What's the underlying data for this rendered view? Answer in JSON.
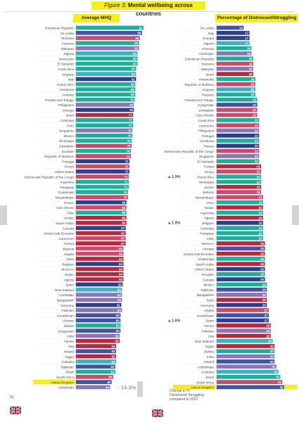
{
  "header": {
    "figure_label": "Figure 3:",
    "title": "Mental wellbeing across countries"
  },
  "chart_data": [
    {
      "type": "bar",
      "title": "Average MHQ",
      "orientation": "horizontal",
      "highlight": "United Kingdom",
      "bottom_annotation": "14.3",
      "categories": [
        "Dominican Republic",
        "Sri Lanka",
        "Tanzania",
        "Panama",
        "Malaysia",
        "Nigeria",
        "Venezuela",
        "El Salvador",
        "Costa Rica",
        "Uruguay",
        "Italy",
        "Puerto Rico",
        "Honduras",
        "Armenia",
        "Trinidad and Tobago",
        "Philippines",
        "Georgia",
        "Israel",
        "Colombia",
        "Peru",
        "Singapore",
        "Mexico",
        "Nicaragua",
        "Zimbabwe",
        "Ecuador",
        "Republic of Moldova",
        "Portugal",
        "Kenya",
        "United States",
        "Democratic Republic of the Congo",
        "Argentina",
        "Paraguay",
        "Guatemala",
        "Mozambique",
        "France",
        "Cote d'Ivoire",
        "Chile",
        "Jordan",
        "Saudi Arabia",
        "Canada",
        "United Arab Emirates",
        "Cameroon",
        "Tunisia",
        "Belarus",
        "Angola",
        "Syria",
        "Belgium",
        "Morocco",
        "Sudan",
        "Algeria",
        "Spain",
        "New Zealand",
        "Azerbaijan",
        "Bangladesh",
        "Germany",
        "Pakistan",
        "Kazakhstan",
        "Ukraine",
        "Bolivia",
        "Kyrgyzstan",
        "India",
        "Yemen",
        "Iraq",
        "Ireland",
        "Egypt",
        "Australia",
        "Tajikistan",
        "Brazil",
        "South Africa",
        "United Kingdom",
        "Uzbekistan"
      ],
      "values": [
        91,
        89,
        86,
        85,
        85,
        83,
        83,
        83,
        81,
        81,
        81,
        80,
        80,
        80,
        79,
        78,
        78,
        77,
        77,
        77,
        76,
        76,
        75,
        75,
        74,
        74,
        72,
        72,
        72,
        71,
        71,
        71,
        70,
        70,
        68,
        68,
        68,
        68,
        68,
        67,
        67,
        67,
        67,
        64,
        64,
        64,
        64,
        64,
        64,
        64,
        63,
        62,
        62,
        62,
        61,
        62,
        60,
        60,
        60,
        60,
        59,
        59,
        54,
        54,
        54,
        54,
        53,
        53,
        50,
        48,
        46
      ],
      "colors": [
        "#1fae9a",
        "#4353a0",
        "#c94a6b",
        "#1fae9a",
        "#8a76b5",
        "#3bb2c6",
        "#1fae9a",
        "#1fae9a",
        "#1fae9a",
        "#3bb2c6",
        "#2c3e8c",
        "#1fae9a",
        "#1fae9a",
        "#1fae9a",
        "#1fae9a",
        "#8a76b5",
        "#2c3e8c",
        "#b5293f",
        "#1fae9a",
        "#1fae9a",
        "#8a76b5",
        "#1fae9a",
        "#1fae9a",
        "#c94a6b",
        "#1fae9a",
        "#c94a6b",
        "#2c3e8c",
        "#c94a6b",
        "#2c3e8c",
        "#c94a6b",
        "#1fae9a",
        "#1fae9a",
        "#1fae9a",
        "#c94a6b",
        "#2c3e8c",
        "#c94a6b",
        "#1fae9a",
        "#b5293f",
        "#b5293f",
        "#2c3e8c",
        "#b5293f",
        "#c94a6b",
        "#b5293f",
        "#c94a6b",
        "#c94a6b",
        "#b5293f",
        "#2c3e8c",
        "#b5293f",
        "#b5293f",
        "#b5293f",
        "#2c3e8c",
        "#3bb2c6",
        "#8a76b5",
        "#8a76b5",
        "#2c3e8c",
        "#8a76b5",
        "#4353a0",
        "#4353a0",
        "#1fae9a",
        "#4353a0",
        "#8a76b5",
        "#b5293f",
        "#b5293f",
        "#4353a0",
        "#b5293f",
        "#3bb2c6",
        "#4353a0",
        "#1fae9a",
        "#c94a6b",
        "#4353a0",
        "#8a76b5"
      ]
    },
    {
      "type": "bar",
      "title": "Percentage of Distressed/Struggling",
      "orientation": "horizontal",
      "highlight": "United Kingdom",
      "categories": [
        "Sri Lanka",
        "Italy",
        "Georgia",
        "Nigeria",
        "Armenia",
        "Azerbaijan",
        "Dominican Republic",
        "Tanzania",
        "Malaysia",
        "Israel",
        "Venezuela",
        "Republic of Moldova",
        "Uruguay",
        "Panama",
        "Trinidad and Tobago",
        "Kyrgyzstan",
        "Zimbabwe",
        "Cote d'Ivoire",
        "Costa Rica",
        "Cameroon",
        "Philippines",
        "Portugal",
        "Honduras",
        "France",
        "Democratic Republic of the Congo",
        "Singapore",
        "El Salvador",
        "Tunisia",
        "Kenya",
        "Puerto Rico",
        "Nicaragua",
        "Jordan",
        "Belarus",
        "Mozambique",
        "Peru",
        "Sudan",
        "Argentina",
        "Algeria",
        "Belgium",
        "Colombia",
        "Paraguay",
        "Chile",
        "Morocco",
        "Ukraine",
        "United Arab Emirates",
        "Guatemala",
        "Saudi Arabia",
        "United States",
        "Ecuador",
        "Canada",
        "Mexico",
        "Tajikistan",
        "Bangladesh",
        "Syria",
        "Germany",
        "Angola",
        "Kazakhstan",
        "Spain",
        "Yemen",
        "Pakistan",
        "Iraq",
        "New Zealand",
        "Egypt",
        "Bolivia",
        "India",
        "Ireland",
        "Uzbekistan",
        "Australia",
        "Brazil",
        "South Africa",
        "United Kingdom"
      ],
      "values": [
        14,
        17,
        17,
        17,
        18,
        18,
        19,
        19,
        19,
        19,
        20,
        20,
        20,
        20,
        21,
        21,
        21,
        21,
        22,
        22,
        22,
        22,
        22,
        22,
        22,
        22,
        22,
        23,
        23,
        23,
        23,
        23,
        23,
        24,
        24,
        24,
        24,
        24,
        24,
        24,
        24,
        24,
        25,
        25,
        25,
        25,
        25,
        25,
        25,
        25,
        26,
        26,
        26,
        26,
        26,
        27,
        27,
        27,
        28,
        28,
        28,
        29,
        30,
        30,
        30,
        30,
        31,
        32,
        33,
        34,
        35
      ],
      "colors": [
        "#4353a0",
        "#2c3e8c",
        "#2c3e8c",
        "#3bb2c6",
        "#1fae9a",
        "#8a76b5",
        "#1fae9a",
        "#c94a6b",
        "#8a76b5",
        "#b5293f",
        "#1fae9a",
        "#c94a6b",
        "#3bb2c6",
        "#1fae9a",
        "#1fae9a",
        "#4353a0",
        "#c94a6b",
        "#c94a6b",
        "#1fae9a",
        "#c94a6b",
        "#8a76b5",
        "#2c3e8c",
        "#1fae9a",
        "#2c3e8c",
        "#c94a6b",
        "#8a76b5",
        "#1fae9a",
        "#b5293f",
        "#c94a6b",
        "#1fae9a",
        "#1fae9a",
        "#b5293f",
        "#c94a6b",
        "#c94a6b",
        "#1fae9a",
        "#b5293f",
        "#1fae9a",
        "#b5293f",
        "#2c3e8c",
        "#1fae9a",
        "#1fae9a",
        "#1fae9a",
        "#b5293f",
        "#4353a0",
        "#b5293f",
        "#1fae9a",
        "#b5293f",
        "#2c3e8c",
        "#1fae9a",
        "#2c3e8c",
        "#1fae9a",
        "#4353a0",
        "#8a76b5",
        "#b5293f",
        "#2c3e8c",
        "#c94a6b",
        "#4353a0",
        "#2c3e8c",
        "#b5293f",
        "#8a76b5",
        "#b5293f",
        "#3bb2c6",
        "#b5293f",
        "#1fae9a",
        "#8a76b5",
        "#4353a0",
        "#8a76b5",
        "#3bb2c6",
        "#1fae9a",
        "#c94a6b",
        "#4353a0"
      ],
      "annotations": [
        {
          "value": "1.9",
          "row": "Puerto Rico"
        },
        {
          "value": "1.9",
          "row": "Belgium"
        },
        {
          "value": "1.6",
          "row": "Spain"
        }
      ]
    }
  ],
  "left_footnote": "IQ",
  "legend_text": "Change in % Distressed/ Struggling compared to 2022"
}
